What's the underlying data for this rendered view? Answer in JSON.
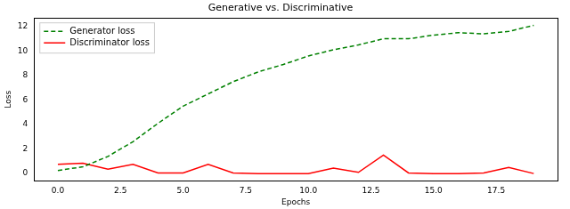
{
  "chart_data": {
    "type": "line",
    "title": "Generative vs. Discriminative",
    "x_label": "Epochs",
    "y_label": "Loss",
    "x": [
      0,
      1,
      2,
      3,
      4,
      5,
      6,
      7,
      8,
      9,
      10,
      11,
      12,
      13,
      14,
      15,
      16,
      17,
      18,
      19
    ],
    "series": [
      {
        "name": "Generator loss",
        "color": "#008000",
        "line_style": "dashed",
        "marker": "none",
        "values": [
          0.25,
          0.55,
          1.4,
          2.6,
          4.1,
          5.5,
          6.5,
          7.5,
          8.3,
          8.9,
          9.6,
          10.1,
          10.5,
          11.0,
          11.0,
          11.3,
          11.5,
          11.4,
          11.6,
          12.1
        ]
      },
      {
        "name": "Discriminator loss",
        "color": "#ff0000",
        "line_style": "solid",
        "marker": "none",
        "values": [
          0.75,
          0.85,
          0.35,
          0.75,
          0.05,
          0.05,
          0.75,
          0.05,
          0.0,
          0.0,
          0.0,
          0.45,
          0.1,
          1.5,
          0.05,
          0.0,
          0.0,
          0.05,
          0.5,
          0.0
        ]
      }
    ],
    "xlim": [
      -0.95,
      19.95
    ],
    "xticks": [
      {
        "value": 0,
        "label": "0.0"
      },
      2.5,
      {
        "value": 5,
        "label": "5.0"
      },
      7.5,
      {
        "value": 10,
        "label": "10.0"
      },
      12.5,
      {
        "value": 15,
        "label": "15.0"
      },
      17.5
    ],
    "ylim": [
      -0.6,
      12.7
    ],
    "yticks": [
      0,
      2,
      4,
      6,
      8,
      10,
      12
    ],
    "grid": false,
    "legend": "upper left"
  }
}
